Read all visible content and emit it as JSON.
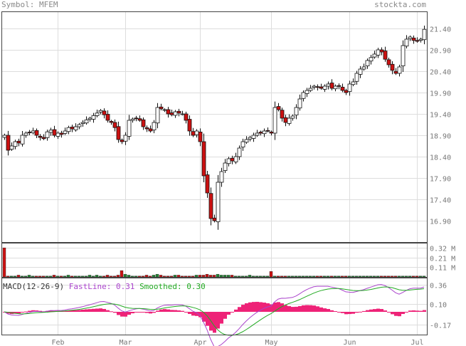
{
  "header": {
    "symbol_prefix": "Symbol:",
    "symbol": "MFEM",
    "site": "stockta.com"
  },
  "colors": {
    "up": "#ffffff",
    "down": "#cc1111",
    "grid": "#dddddd",
    "frame": "#444444",
    "macd_fast": "#aa44cc",
    "macd_slow": "#22aa22",
    "macd_hist": "#ee2277",
    "vol_up": "#228833",
    "vol_down": "#cc1111"
  },
  "chart_data": {
    "type": "candlestick",
    "price_axis": {
      "ticks": [
        "21.40",
        "20.90",
        "20.40",
        "19.90",
        "19.40",
        "18.90",
        "18.40",
        "17.90",
        "17.40",
        "16.90"
      ],
      "ylim": [
        16.4,
        21.8
      ]
    },
    "volume_axis": {
      "ticks": [
        "0.32 M",
        "0.21 M",
        "0.11 M"
      ],
      "ylim": [
        0,
        0.36
      ]
    },
    "macd_axis": {
      "ticks": [
        "0.36",
        "0.10",
        "-0.17"
      ],
      "ylim": [
        -0.3,
        0.45
      ]
    },
    "macd_legend": {
      "label": "MACD(12-26-9)",
      "fast_label": "FastLine:",
      "fast_value": "0.31",
      "smoothed_label": "Smoothed:",
      "smoothed_value": "0.30"
    },
    "months": [
      {
        "label": "Feb",
        "index": 15
      },
      {
        "label": "Mar",
        "index": 34
      },
      {
        "label": "Apr",
        "index": 55
      },
      {
        "label": "May",
        "index": 75
      },
      {
        "label": "Jun",
        "index": 97
      },
      {
        "label": "Jul",
        "index": 116
      }
    ],
    "closes": [
      18.9,
      18.55,
      18.65,
      18.75,
      18.72,
      18.9,
      18.95,
      18.97,
      19.0,
      18.9,
      18.85,
      18.82,
      18.98,
      19.02,
      18.9,
      18.95,
      18.92,
      19.0,
      19.08,
      19.05,
      19.1,
      19.15,
      19.2,
      19.26,
      19.3,
      19.36,
      19.42,
      19.48,
      19.38,
      19.25,
      19.2,
      19.08,
      18.8,
      18.75,
      18.9,
      19.25,
      19.28,
      19.3,
      19.25,
      19.1,
      19.05,
      19.0,
      19.2,
      19.55,
      19.52,
      19.5,
      19.4,
      19.38,
      19.45,
      19.42,
      19.4,
      19.25,
      19.0,
      18.9,
      19.0,
      18.75,
      17.95,
      17.55,
      16.95,
      16.9,
      17.8,
      18.05,
      18.25,
      18.35,
      18.3,
      18.4,
      18.6,
      18.75,
      18.8,
      18.85,
      18.9,
      18.95,
      18.95,
      19.0,
      19.0,
      18.95,
      19.55,
      19.5,
      19.3,
      19.2,
      19.3,
      19.35,
      19.55,
      19.75,
      19.9,
      19.95,
      20.0,
      20.05,
      20.02,
      20.0,
      20.05,
      20.1,
      20.0,
      20.05,
      20.05,
      19.95,
      19.9,
      20.1,
      20.15,
      20.35,
      20.45,
      20.5,
      20.65,
      20.72,
      20.8,
      20.9,
      20.85,
      20.68,
      20.55,
      20.42,
      20.35,
      20.5,
      21.0,
      21.15,
      21.2,
      21.12,
      21.1,
      21.15,
      21.38
    ],
    "volumes": [
      0.32,
      0.01,
      0.01,
      0.01,
      0.02,
      0.01,
      0.01,
      0.02,
      0.01,
      0.01,
      0.01,
      0.01,
      0.01,
      0.01,
      0.02,
      0.01,
      0.01,
      0.01,
      0.02,
      0.01,
      0.01,
      0.01,
      0.01,
      0.01,
      0.02,
      0.01,
      0.02,
      0.01,
      0.01,
      0.02,
      0.01,
      0.01,
      0.02,
      0.07,
      0.03,
      0.02,
      0.01,
      0.01,
      0.01,
      0.01,
      0.02,
      0.01,
      0.02,
      0.03,
      0.02,
      0.01,
      0.01,
      0.01,
      0.02,
      0.02,
      0.01,
      0.01,
      0.01,
      0.01,
      0.02,
      0.02,
      0.02,
      0.03,
      0.02,
      0.02,
      0.03,
      0.02,
      0.02,
      0.02,
      0.02,
      0.01,
      0.01,
      0.01,
      0.01,
      0.02,
      0.01,
      0.01,
      0.01,
      0.01,
      0.01,
      0.06,
      0.01,
      0.01,
      0.01,
      0.01,
      0.01,
      0.01,
      0.01,
      0.01,
      0.01,
      0.01,
      0.01,
      0.01,
      0.01,
      0.01,
      0.01,
      0.01,
      0.01,
      0.01,
      0.01,
      0.01,
      0.01,
      0.01,
      0.01,
      0.01,
      0.01,
      0.01,
      0.01,
      0.01,
      0.01,
      0.01,
      0.01,
      0.01,
      0.01,
      0.01,
      0.01,
      0.01,
      0.01,
      0.01,
      0.01,
      0.01,
      0.01,
      0.01,
      0.01
    ]
  }
}
